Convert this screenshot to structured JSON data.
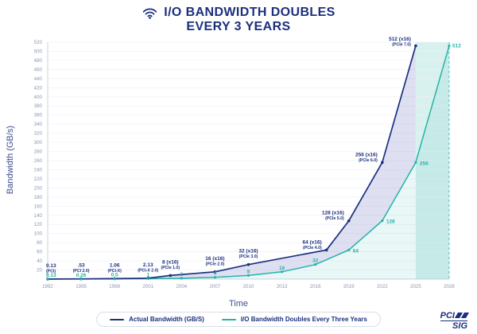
{
  "title": {
    "line1": "I/O BANDWIDTH DOUBLES",
    "line2": "EVERY 3 YEARS"
  },
  "axes": {
    "x_label": "Time",
    "y_label": "Bandwidth (GB/s)"
  },
  "legend": [
    {
      "label": "Actual Bandwidth (GB/S)",
      "color": "#1b2f7e"
    },
    {
      "label": "I/O Bandwidth Doubles Every Three Years",
      "color": "#25b3a7"
    }
  ],
  "logo": {
    "line1": "PCI",
    "line2": "SIG"
  },
  "chart_data": {
    "type": "line",
    "title": "I/O Bandwidth Doubles Every 3 Years",
    "xlabel": "Time",
    "ylabel": "Bandwidth (GB/s)",
    "ylim": [
      0,
      520
    ],
    "y_tick_step": 20,
    "x_ticks": [
      1992,
      1995,
      1998,
      2001,
      2004,
      2007,
      2010,
      2013,
      2016,
      2019,
      2022,
      2025,
      2028
    ],
    "grid": "horizontal",
    "legend_position": "bottom",
    "colors": {
      "band": "rgba(37,179,165,0.18)",
      "between_fill": "rgba(105,112,190,0.22)",
      "teal_fill": "rgba(37,179,165,0.10)"
    },
    "highlight_band": {
      "from": 2025,
      "to": 2028
    },
    "series": [
      {
        "name": "Actual Bandwidth (GB/S)",
        "color": "#1b2f7e",
        "points": [
          {
            "x": 1992,
            "y": 0.13,
            "label": "0.13",
            "sub": "(PCI)"
          },
          {
            "x": 1995,
            "y": 0.53,
            "label": ".53",
            "sub": "(PCI 2.0)"
          },
          {
            "x": 1998,
            "y": 1.06,
            "label": "1.06",
            "sub": "(PCI-X)"
          },
          {
            "x": 2001,
            "y": 2.13,
            "label": "2.13",
            "sub": "(PCI-X 2.0)"
          },
          {
            "x": 2003,
            "y": 8,
            "label": "8 (x16)",
            "sub": "(PCIe 1.0)"
          },
          {
            "x": 2007,
            "y": 16,
            "label": "16 (x16)",
            "sub": "(PCIe 2.0)"
          },
          {
            "x": 2010,
            "y": 32,
            "label": "32 (x16)",
            "sub": "(PCIe 3.0)"
          },
          {
            "x": 2017,
            "y": 64,
            "label": "64 (x16)",
            "sub": "(PCIe 4.0)"
          },
          {
            "x": 2019,
            "y": 128,
            "label": "128 (x16)",
            "sub": "(PCIe 5.0)"
          },
          {
            "x": 2022,
            "y": 256,
            "label": "256 (x16)",
            "sub": "(PCIe 6.0)"
          },
          {
            "x": 2025,
            "y": 512,
            "label": "512 (x16)",
            "sub": "(PCIe 7.0)"
          }
        ]
      },
      {
        "name": "I/O Bandwidth Doubles Every Three Years",
        "color": "#25b3a7",
        "points": [
          {
            "x": 1992,
            "y": 0.13,
            "label": "0.13"
          },
          {
            "x": 1995,
            "y": 0.26,
            "label": "0.26"
          },
          {
            "x": 1998,
            "y": 0.5,
            "label": "0.5"
          },
          {
            "x": 2001,
            "y": 1,
            "label": "1"
          },
          {
            "x": 2004,
            "y": 2,
            "label": "2"
          },
          {
            "x": 2007,
            "y": 4,
            "label": "4"
          },
          {
            "x": 2010,
            "y": 8,
            "label": "8"
          },
          {
            "x": 2013,
            "y": 16,
            "label": "16"
          },
          {
            "x": 2016,
            "y": 32,
            "label": "32"
          },
          {
            "x": 2019,
            "y": 64,
            "label": "64"
          },
          {
            "x": 2022,
            "y": 128,
            "label": "128"
          },
          {
            "x": 2025,
            "y": 256,
            "label": "256"
          },
          {
            "x": 2028,
            "y": 512,
            "label": "512"
          }
        ]
      }
    ]
  }
}
